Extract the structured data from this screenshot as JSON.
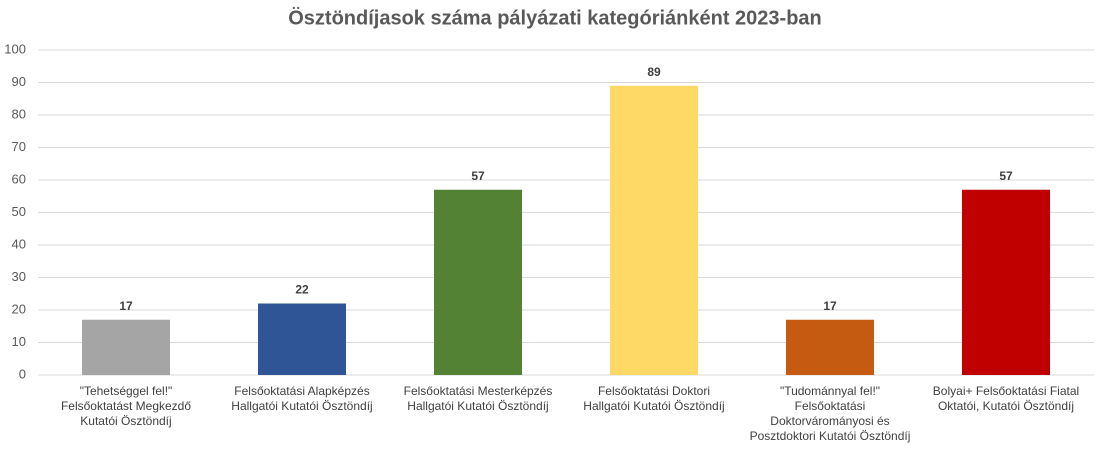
{
  "chart_data": {
    "type": "bar",
    "title": "Ösztöndíjasok száma pályázati kategóriánként 2023-ban",
    "categories": [
      "\"Tehetséggel fel!\" Felsőoktatást Megkezdő Kutatói Ösztöndíj",
      "Felsőoktatási Alapképzés Hallgatói Kutatói Ösztöndíj",
      "Felsőoktatási Mesterképzés Hallgatói Kutatói Ösztöndíj",
      "Felsőoktatási Doktori Hallgatói Kutatói Ösztöndíj",
      "\"Tudománnyal fel!\" Felsőoktatási Doktorvárományosi és Posztdoktori Kutatói Ösztöndíj",
      "Bolyai+ Felsőoktatási Fiatal Oktatói, Kutatói Ösztöndíj"
    ],
    "values": [
      17,
      22,
      57,
      89,
      17,
      57
    ],
    "colors": [
      "#a5a5a5",
      "#2f5597",
      "#548235",
      "#ffd966",
      "#c55a11",
      "#c00000"
    ],
    "ylim": [
      0,
      100
    ],
    "yticks": [
      0,
      10,
      20,
      30,
      40,
      50,
      60,
      70,
      80,
      90,
      100
    ],
    "grid": true
  }
}
